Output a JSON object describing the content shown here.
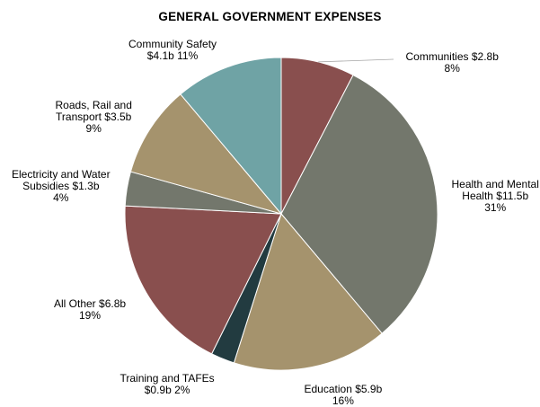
{
  "chart_data": {
    "type": "pie",
    "title": "GENERAL GOVERNMENT EXPENSES",
    "slices": [
      {
        "key": "communities",
        "label_lines": [
          "Communities  $2.8b",
          "8%"
        ],
        "name": "Communities",
        "value": 2.8,
        "percent": 8,
        "color": "#894F4E"
      },
      {
        "key": "health",
        "label_lines": [
          "Health and Mental",
          "Health  $11.5b",
          "31%"
        ],
        "name": "Health and Mental Health",
        "value": 11.5,
        "percent": 31,
        "color": "#73776C"
      },
      {
        "key": "education",
        "label_lines": [
          "Education  $5.9b",
          "16%"
        ],
        "name": "Education",
        "value": 5.9,
        "percent": 16,
        "color": "#A5936D"
      },
      {
        "key": "training",
        "label_lines": [
          "Training and TAFEs",
          "$0.9b  2%"
        ],
        "name": "Training and TAFEs",
        "value": 0.9,
        "percent": 2,
        "color": "#223B40"
      },
      {
        "key": "other",
        "label_lines": [
          "All Other  $6.8b",
          "19%"
        ],
        "name": "All Other",
        "value": 6.8,
        "percent": 19,
        "color": "#894F4E"
      },
      {
        "key": "electricity",
        "label_lines": [
          "Electricity and Water",
          "Subsidies $1.3b",
          "4%"
        ],
        "name": "Electricity and Water Subsidies",
        "value": 1.3,
        "percent": 4,
        "color": "#73776C"
      },
      {
        "key": "roads",
        "label_lines": [
          "Roads, Rail and",
          "Transport  $3.5b",
          "9%"
        ],
        "name": "Roads, Rail and Transport",
        "value": 3.5,
        "percent": 9,
        "color": "#A5936D"
      },
      {
        "key": "safety",
        "label_lines": [
          "Community Safety",
          "$4.1b   11%"
        ],
        "name": "Community Safety",
        "value": 4.1,
        "percent": 11,
        "color": "#6FA3A5"
      }
    ]
  }
}
